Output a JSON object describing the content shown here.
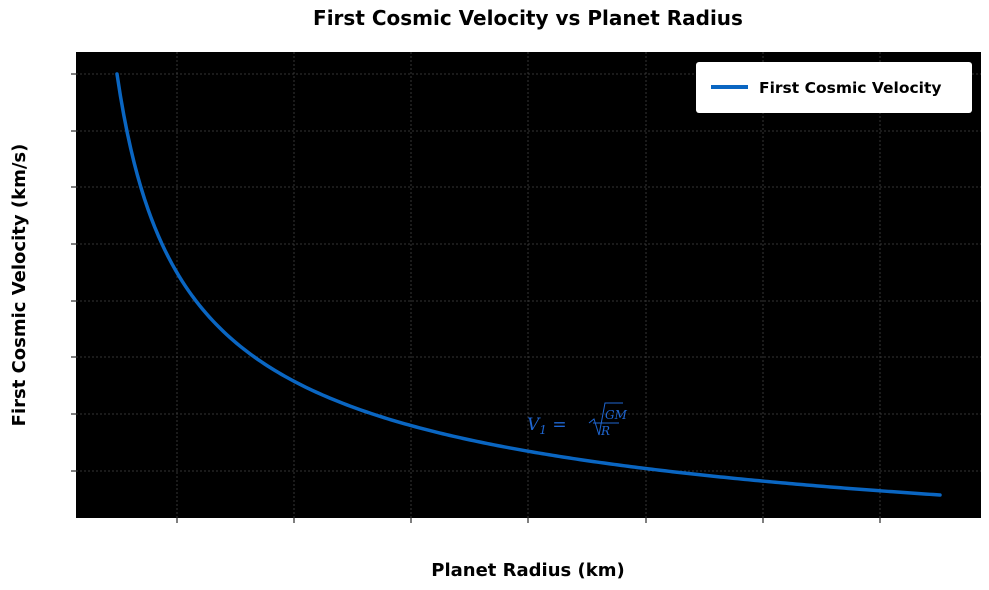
{
  "chart_data": {
    "type": "line",
    "title": "First Cosmic Velocity vs Planet Radius",
    "xlabel": "Planet Radius (km)",
    "ylabel": "First Cosmic Velocity (km/s)",
    "xlim": [
      0,
      1
    ],
    "ylim": [
      0,
      1
    ],
    "x_tick_labels_shown": false,
    "y_tick_labels_shown": false,
    "grid": true,
    "legend_position": "top-right",
    "background": "black",
    "series": [
      {
        "name": "First Cosmic Velocity",
        "color": "#0a66c2",
        "formula": "v = sqrt(GM/R)"
      }
    ],
    "annotation": {
      "lhs": "V",
      "sub": "1",
      "num": "GM",
      "den": "R"
    }
  }
}
